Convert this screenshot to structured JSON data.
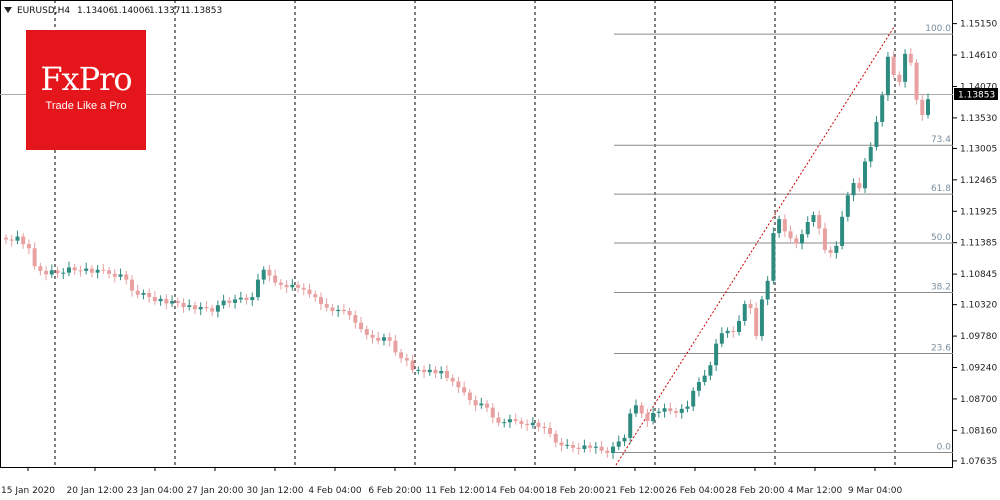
{
  "header": {
    "symbol": "EURUSD,H4",
    "open": "1.13406",
    "high": "1.14006",
    "low": "1.13371",
    "close": "1.13853"
  },
  "logo": {
    "brand": "FxPro",
    "tagline": "Trade Like a Pro"
  },
  "colors": {
    "bull": "#2e8b80",
    "bear": "#e8a0a0",
    "grid": "#000000",
    "fib": "#8a8a8a",
    "price_line": "#aaaaaa",
    "trend": "#cc0000"
  },
  "chart_data": {
    "type": "candlestick",
    "symbol": "EURUSD",
    "timeframe": "H4",
    "ylim": [
      1.0753,
      1.1547
    ],
    "y_ticks": [
      "1.15150",
      "1.14610",
      "1.14070",
      "1.13530",
      "1.13005",
      "1.12465",
      "1.11925",
      "1.11385",
      "1.10845",
      "1.10320",
      "1.09780",
      "1.09240",
      "1.08700",
      "1.08160",
      "1.07635"
    ],
    "current_price": "1.13853",
    "x_labels": [
      "15 Jan 2020",
      "20 Jan 12:00",
      "23 Jan 04:00",
      "27 Jan 20:00",
      "30 Jan 12:00",
      "4 Feb 04:00",
      "6 Feb 20:00",
      "11 Feb 12:00",
      "14 Feb 04:00",
      "18 Feb 20:00",
      "21 Feb 12:00",
      "26 Feb 04:00",
      "28 Feb 20:00",
      "4 Mar 12:00",
      "9 Mar 04:00"
    ],
    "fibonacci": {
      "low": 1.0778,
      "high": 1.1497,
      "levels": [
        {
          "label": "100.0",
          "value": 1.1497
        },
        {
          "label": "73.4",
          "value": 1.1306
        },
        {
          "label": "61.8",
          "value": 1.1222
        },
        {
          "label": "50.0",
          "value": 1.1138
        },
        {
          "label": "38.2",
          "value": 1.1053
        },
        {
          "label": "23.6",
          "value": 1.0948
        },
        {
          "label": "0.0",
          "value": 1.0778
        }
      ]
    },
    "closes": [
      1.1144,
      1.1142,
      1.1149,
      1.1136,
      1.1129,
      1.1098,
      1.109,
      1.1084,
      1.1091,
      1.1086,
      1.1087,
      1.1096,
      1.1091,
      1.109,
      1.1094,
      1.1087,
      1.1092,
      1.1091,
      1.1085,
      1.108,
      1.1084,
      1.1075,
      1.1056,
      1.1049,
      1.1052,
      1.1045,
      1.1038,
      1.1042,
      1.1034,
      1.1038,
      1.1035,
      1.1028,
      1.1031,
      1.1024,
      1.1028,
      1.1026,
      1.102,
      1.1031,
      1.1039,
      1.1035,
      1.1041,
      1.1044,
      1.104,
      1.1045,
      1.1075,
      1.1092,
      1.1082,
      1.107,
      1.1066,
      1.1062,
      1.1066,
      1.1061,
      1.1058,
      1.105,
      1.1045,
      1.1033,
      1.1027,
      1.1021,
      1.1023,
      1.1021,
      1.1014,
      1.1001,
      1.099,
      1.098,
      1.0975,
      1.097,
      1.0976,
      1.097,
      1.095,
      1.094,
      1.0936,
      1.092,
      1.092,
      1.0916,
      1.092,
      1.0914,
      1.0918,
      1.0906,
      1.09,
      1.089,
      1.0881,
      1.0868,
      1.0859,
      1.0862,
      1.0855,
      1.0838,
      1.0829,
      1.083,
      1.0835,
      1.0832,
      1.0827,
      1.0825,
      1.0829,
      1.0822,
      1.082,
      1.081,
      1.0795,
      1.079,
      1.0791,
      1.0786,
      1.0784,
      1.079,
      1.0786,
      1.0788,
      1.0781,
      1.0777,
      1.0788,
      1.0797,
      1.0803,
      1.0845,
      1.0859,
      1.0845,
      1.0832,
      1.0846,
      1.0848,
      1.0854,
      1.0849,
      1.0846,
      1.0853,
      1.0857,
      1.0884,
      1.0899,
      1.091,
      1.0928,
      1.0965,
      1.0983,
      1.0987,
      1.0985,
      1.1004,
      1.1033,
      1.1026,
      1.0978,
      1.1041,
      1.1073,
      1.1155,
      1.1179,
      1.1158,
      1.1146,
      1.1137,
      1.1153,
      1.1174,
      1.1186,
      1.1163,
      1.1126,
      1.1121,
      1.1133,
      1.1183,
      1.122,
      1.1241,
      1.1232,
      1.1278,
      1.1303,
      1.1346,
      1.1392,
      1.1458,
      1.1427,
      1.1415,
      1.1463,
      1.1448,
      1.1384,
      1.1358,
      1.1385
    ]
  }
}
